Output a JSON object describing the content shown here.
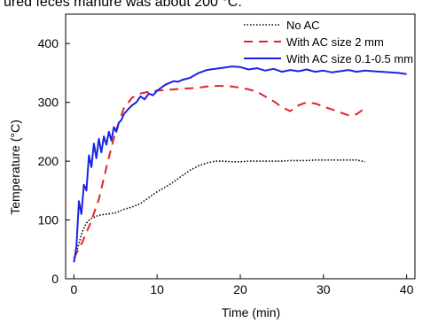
{
  "caption": "ured feces manure was about 200 °C.",
  "chart_data": {
    "type": "line",
    "xlabel": "Time (min)",
    "ylabel": "Temperature (°C)",
    "xlim": [
      -1,
      41
    ],
    "ylim": [
      0,
      450
    ],
    "xticks": [
      0,
      10,
      20,
      30,
      40
    ],
    "yticks": [
      0,
      100,
      200,
      300,
      400
    ],
    "grid": false,
    "legend_position": "top-right",
    "series": [
      {
        "name": "No AC",
        "style": "dotted",
        "color": "#000000",
        "x": [
          0,
          0.5,
          1,
          1.5,
          2,
          2.5,
          3,
          4,
          5,
          6,
          7,
          8,
          9,
          10,
          11,
          12,
          13,
          14,
          15,
          16,
          17,
          18,
          19,
          20,
          21,
          22,
          23,
          24,
          25,
          26,
          27,
          28,
          29,
          30,
          31,
          32,
          33,
          34,
          35
        ],
        "y": [
          30,
          55,
          80,
          95,
          102,
          105,
          108,
          110,
          112,
          118,
          122,
          128,
          138,
          148,
          156,
          165,
          175,
          185,
          192,
          197,
          200,
          200,
          199,
          199,
          200,
          200,
          200,
          200,
          200,
          201,
          201,
          201,
          202,
          202,
          202,
          202,
          202,
          202,
          199
        ]
      },
      {
        "name": "With AC size 2 mm",
        "style": "dashed",
        "color": "#e8202a",
        "x": [
          0,
          1,
          2,
          3,
          4,
          5,
          6,
          7,
          8,
          9,
          10,
          11,
          12,
          13,
          14,
          15,
          16,
          17,
          18,
          19,
          20,
          21,
          22,
          23,
          24,
          25,
          26,
          27,
          28,
          29,
          30,
          31,
          32,
          33,
          34,
          35
        ],
        "y": [
          35,
          62,
          95,
          135,
          195,
          250,
          290,
          308,
          315,
          318,
          320,
          321,
          322,
          323,
          324,
          325,
          327,
          328,
          328,
          327,
          325,
          322,
          318,
          310,
          302,
          292,
          285,
          295,
          300,
          298,
          293,
          288,
          283,
          278,
          280,
          290
        ]
      },
      {
        "name": "With AC size 0.1-0.5 mm",
        "style": "solid",
        "color": "#1a23e6",
        "x": [
          0,
          0.3,
          0.6,
          0.9,
          1.2,
          1.5,
          1.8,
          2.1,
          2.4,
          2.7,
          3.0,
          3.3,
          3.6,
          3.9,
          4.2,
          4.5,
          4.8,
          5.1,
          5.4,
          5.7,
          6,
          6.5,
          7,
          7.5,
          8,
          8.5,
          9,
          9.5,
          10,
          10.5,
          11,
          11.5,
          12,
          12.5,
          13,
          13.5,
          14,
          15,
          16,
          17,
          18,
          19,
          20,
          21,
          22,
          23,
          24,
          25,
          26,
          27,
          28,
          29,
          30,
          31,
          32,
          33,
          34,
          35,
          36,
          37,
          38,
          39,
          40
        ],
        "y": [
          28,
          55,
          132,
          110,
          160,
          150,
          210,
          190,
          230,
          205,
          238,
          215,
          242,
          228,
          250,
          235,
          258,
          250,
          265,
          270,
          280,
          288,
          295,
          300,
          310,
          305,
          315,
          312,
          320,
          325,
          330,
          333,
          336,
          335,
          338,
          340,
          342,
          350,
          355,
          357,
          359,
          361,
          360,
          356,
          358,
          354,
          357,
          352,
          355,
          353,
          356,
          352,
          354,
          351,
          353,
          355,
          352,
          354,
          353,
          352,
          351,
          350,
          348
        ]
      }
    ]
  }
}
